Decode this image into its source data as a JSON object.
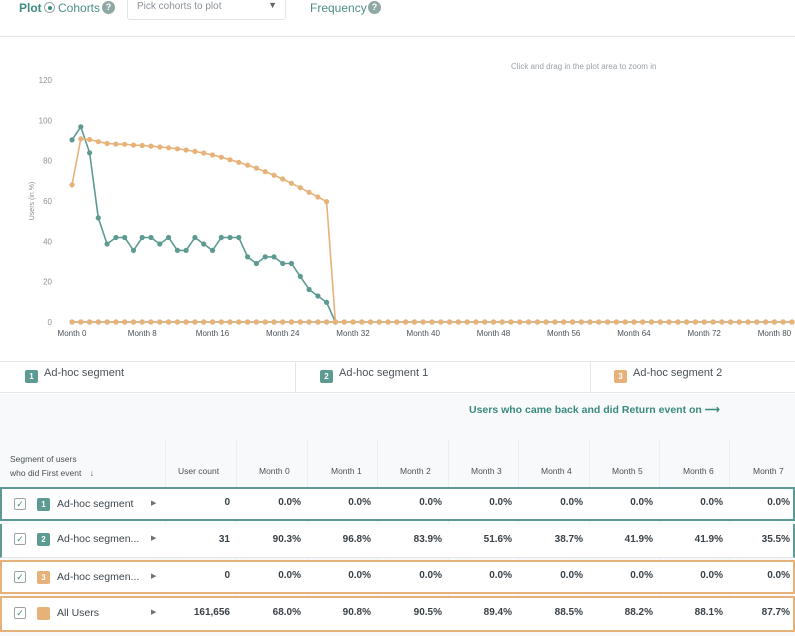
{
  "topbar": {
    "plot_label": "Plot",
    "cohorts_label": "Cohorts",
    "cohorts_help": "?",
    "select_placeholder": "Pick cohorts to plot",
    "frequency_label": "Frequency",
    "frequency_help": "?"
  },
  "chart_hint": "Click and drag in the plot area to zoom in",
  "colors": {
    "green": "#5d9b92",
    "orange": "#e7b279",
    "accent_text": "#3d8c83"
  },
  "chart_data": {
    "type": "line",
    "ylabel": "Users (in %)",
    "ylim": [
      0,
      120
    ],
    "yticks": [
      "0",
      "20",
      "40",
      "60",
      "80",
      "100",
      "120"
    ],
    "xlim": [
      0,
      82
    ],
    "xticks": [
      {
        "x": 0,
        "label": "Month 0"
      },
      {
        "x": 8,
        "label": "Month 8"
      },
      {
        "x": 16,
        "label": "Month 16"
      },
      {
        "x": 24,
        "label": "Month 24"
      },
      {
        "x": 32,
        "label": "Month 32"
      },
      {
        "x": 40,
        "label": "Month 40"
      },
      {
        "x": 48,
        "label": "Month 48"
      },
      {
        "x": 56,
        "label": "Month 56"
      },
      {
        "x": 64,
        "label": "Month 64"
      },
      {
        "x": 72,
        "label": "Month 72"
      },
      {
        "x": 80,
        "label": "Month 80"
      }
    ],
    "series": [
      {
        "name": "Ad-hoc segment",
        "color": "#5d9b92",
        "points": [
          [
            0,
            0
          ],
          [
            1,
            0
          ],
          [
            2,
            0
          ],
          [
            3,
            0
          ],
          [
            4,
            0
          ],
          [
            5,
            0
          ],
          [
            6,
            0
          ],
          [
            7,
            0
          ],
          [
            8,
            0
          ],
          [
            9,
            0
          ],
          [
            10,
            0
          ],
          [
            11,
            0
          ],
          [
            12,
            0
          ],
          [
            13,
            0
          ],
          [
            14,
            0
          ],
          [
            15,
            0
          ],
          [
            16,
            0
          ],
          [
            17,
            0
          ],
          [
            18,
            0
          ],
          [
            19,
            0
          ],
          [
            20,
            0
          ],
          [
            21,
            0
          ],
          [
            22,
            0
          ],
          [
            23,
            0
          ],
          [
            24,
            0
          ],
          [
            25,
            0
          ],
          [
            26,
            0
          ],
          [
            27,
            0
          ],
          [
            28,
            0
          ],
          [
            29,
            0
          ],
          [
            30,
            0
          ],
          [
            31,
            0
          ],
          [
            32,
            0
          ],
          [
            33,
            0
          ],
          [
            34,
            0
          ],
          [
            35,
            0
          ],
          [
            36,
            0
          ],
          [
            37,
            0
          ],
          [
            38,
            0
          ],
          [
            39,
            0
          ],
          [
            40,
            0
          ],
          [
            41,
            0
          ],
          [
            42,
            0
          ],
          [
            43,
            0
          ],
          [
            44,
            0
          ],
          [
            45,
            0
          ],
          [
            46,
            0
          ],
          [
            47,
            0
          ],
          [
            48,
            0
          ],
          [
            49,
            0
          ],
          [
            50,
            0
          ],
          [
            51,
            0
          ],
          [
            52,
            0
          ],
          [
            53,
            0
          ],
          [
            54,
            0
          ],
          [
            55,
            0
          ],
          [
            56,
            0
          ],
          [
            57,
            0
          ],
          [
            58,
            0
          ],
          [
            59,
            0
          ],
          [
            60,
            0
          ],
          [
            61,
            0
          ],
          [
            62,
            0
          ],
          [
            63,
            0
          ],
          [
            64,
            0
          ],
          [
            65,
            0
          ],
          [
            66,
            0
          ],
          [
            67,
            0
          ],
          [
            68,
            0
          ],
          [
            69,
            0
          ],
          [
            70,
            0
          ],
          [
            71,
            0
          ],
          [
            72,
            0
          ],
          [
            73,
            0
          ],
          [
            74,
            0
          ],
          [
            75,
            0
          ],
          [
            76,
            0
          ],
          [
            77,
            0
          ],
          [
            78,
            0
          ],
          [
            79,
            0
          ],
          [
            80,
            0
          ],
          [
            81,
            0
          ],
          [
            82,
            0
          ]
        ]
      },
      {
        "name": "Ad-hoc segment 1",
        "color": "#5d9b92",
        "points": [
          [
            0,
            90.3
          ],
          [
            1,
            96.8
          ],
          [
            2,
            83.9
          ],
          [
            3,
            51.6
          ],
          [
            4,
            38.7
          ],
          [
            5,
            41.9
          ],
          [
            6,
            41.9
          ],
          [
            7,
            35.5
          ],
          [
            8,
            41.9
          ],
          [
            9,
            41.9
          ],
          [
            10,
            38.7
          ],
          [
            11,
            41.9
          ],
          [
            12,
            35.5
          ],
          [
            13,
            35.5
          ],
          [
            14,
            41.9
          ],
          [
            15,
            38.7
          ],
          [
            16,
            35.5
          ],
          [
            17,
            41.9
          ],
          [
            18,
            41.9
          ],
          [
            19,
            41.9
          ],
          [
            20,
            32.3
          ],
          [
            21,
            29
          ],
          [
            22,
            32.3
          ],
          [
            23,
            32.3
          ],
          [
            24,
            29
          ],
          [
            25,
            29
          ],
          [
            26,
            22.6
          ],
          [
            27,
            16.1
          ],
          [
            28,
            12.9
          ],
          [
            29,
            9.7
          ],
          [
            30,
            0
          ]
        ]
      },
      {
        "name": "Ad-hoc segment 2",
        "color": "#e7b279",
        "points": [
          [
            0,
            0
          ],
          [
            1,
            0
          ],
          [
            2,
            0
          ],
          [
            3,
            0
          ],
          [
            4,
            0
          ],
          [
            5,
            0
          ],
          [
            6,
            0
          ],
          [
            7,
            0
          ],
          [
            8,
            0
          ],
          [
            9,
            0
          ],
          [
            10,
            0
          ],
          [
            11,
            0
          ],
          [
            12,
            0
          ],
          [
            13,
            0
          ],
          [
            14,
            0
          ],
          [
            15,
            0
          ],
          [
            16,
            0
          ],
          [
            17,
            0
          ],
          [
            18,
            0
          ],
          [
            19,
            0
          ],
          [
            20,
            0
          ],
          [
            21,
            0
          ],
          [
            22,
            0
          ],
          [
            23,
            0
          ],
          [
            24,
            0
          ],
          [
            25,
            0
          ],
          [
            26,
            0
          ],
          [
            27,
            0
          ],
          [
            28,
            0
          ],
          [
            29,
            0
          ],
          [
            30,
            0
          ],
          [
            31,
            0
          ],
          [
            32,
            0
          ],
          [
            33,
            0
          ],
          [
            34,
            0
          ],
          [
            35,
            0
          ],
          [
            36,
            0
          ],
          [
            37,
            0
          ],
          [
            38,
            0
          ],
          [
            39,
            0
          ],
          [
            40,
            0
          ],
          [
            41,
            0
          ],
          [
            42,
            0
          ],
          [
            43,
            0
          ],
          [
            44,
            0
          ],
          [
            45,
            0
          ],
          [
            46,
            0
          ],
          [
            47,
            0
          ],
          [
            48,
            0
          ],
          [
            49,
            0
          ],
          [
            50,
            0
          ],
          [
            51,
            0
          ],
          [
            52,
            0
          ],
          [
            53,
            0
          ],
          [
            54,
            0
          ],
          [
            55,
            0
          ],
          [
            56,
            0
          ],
          [
            57,
            0
          ],
          [
            58,
            0
          ],
          [
            59,
            0
          ],
          [
            60,
            0
          ],
          [
            61,
            0
          ],
          [
            62,
            0
          ],
          [
            63,
            0
          ],
          [
            64,
            0
          ],
          [
            65,
            0
          ],
          [
            66,
            0
          ],
          [
            67,
            0
          ],
          [
            68,
            0
          ],
          [
            69,
            0
          ],
          [
            70,
            0
          ],
          [
            71,
            0
          ],
          [
            72,
            0
          ],
          [
            73,
            0
          ],
          [
            74,
            0
          ],
          [
            75,
            0
          ],
          [
            76,
            0
          ],
          [
            77,
            0
          ],
          [
            78,
            0
          ],
          [
            79,
            0
          ],
          [
            80,
            0
          ],
          [
            81,
            0
          ],
          [
            82,
            0
          ]
        ]
      },
      {
        "name": "All Users",
        "color": "#e7b279",
        "points": [
          [
            0,
            68
          ],
          [
            1,
            90.8
          ],
          [
            2,
            90.5
          ],
          [
            3,
            89.4
          ],
          [
            4,
            88.5
          ],
          [
            5,
            88.2
          ],
          [
            6,
            88.1
          ],
          [
            7,
            87.7
          ],
          [
            8,
            87.5
          ],
          [
            9,
            87.2
          ],
          [
            10,
            86.8
          ],
          [
            11,
            86.4
          ],
          [
            12,
            85.9
          ],
          [
            13,
            85.3
          ],
          [
            14,
            84.6
          ],
          [
            15,
            83.8
          ],
          [
            16,
            82.8
          ],
          [
            17,
            81.7
          ],
          [
            18,
            80.5
          ],
          [
            19,
            79.2
          ],
          [
            20,
            77.8
          ],
          [
            21,
            76.3
          ],
          [
            22,
            74.6
          ],
          [
            23,
            72.8
          ],
          [
            24,
            70.9
          ],
          [
            25,
            68.8
          ],
          [
            26,
            66.6
          ],
          [
            27,
            64.3
          ],
          [
            28,
            62
          ],
          [
            29,
            59.7
          ],
          [
            30,
            0
          ]
        ]
      }
    ]
  },
  "legend": [
    {
      "badge": "1",
      "label": "Ad-hoc segment",
      "color": "#5d9b92"
    },
    {
      "badge": "2",
      "label": "Ad-hoc segment 1",
      "color": "#5d9b92"
    },
    {
      "badge": "3",
      "label": "Ad-hoc segment 2",
      "color": "#e7b279"
    }
  ],
  "table": {
    "caption": "Users who came back and did Return event on ⟶",
    "segment_header_line1": "Segment of users",
    "segment_header_line2": "who did First event",
    "sort_icon": "↓",
    "columns": [
      "User count",
      "Month 0",
      "Month 1",
      "Month 2",
      "Month 3",
      "Month 4",
      "Month 5",
      "Month 6",
      "Month 7"
    ],
    "rows": [
      {
        "badge": "1",
        "name": "Ad-hoc segment",
        "color": "#5d9b92",
        "checked": "✓",
        "caret": "▶",
        "values": [
          "0",
          "0.0%",
          "0.0%",
          "0.0%",
          "0.0%",
          "0.0%",
          "0.0%",
          "0.0%",
          "0.0%"
        ]
      },
      {
        "badge": "2",
        "name": "Ad-hoc segmen...",
        "color": "#5d9b92",
        "checked": "✓",
        "caret": "▶",
        "values": [
          "31",
          "90.3%",
          "96.8%",
          "83.9%",
          "51.6%",
          "38.7%",
          "41.9%",
          "41.9%",
          "35.5%"
        ]
      },
      {
        "badge": "3",
        "name": "Ad-hoc segmen...",
        "color": "#e7b279",
        "checked": "✓",
        "caret": "▶",
        "values": [
          "0",
          "0.0%",
          "0.0%",
          "0.0%",
          "0.0%",
          "0.0%",
          "0.0%",
          "0.0%",
          "0.0%"
        ]
      },
      {
        "badge": "",
        "name": "All Users",
        "color": "#e7b279",
        "checked": "✓",
        "caret": "▶",
        "values": [
          "161,656",
          "68.0%",
          "90.8%",
          "90.5%",
          "89.4%",
          "88.5%",
          "88.2%",
          "88.1%",
          "87.7%"
        ]
      }
    ]
  }
}
